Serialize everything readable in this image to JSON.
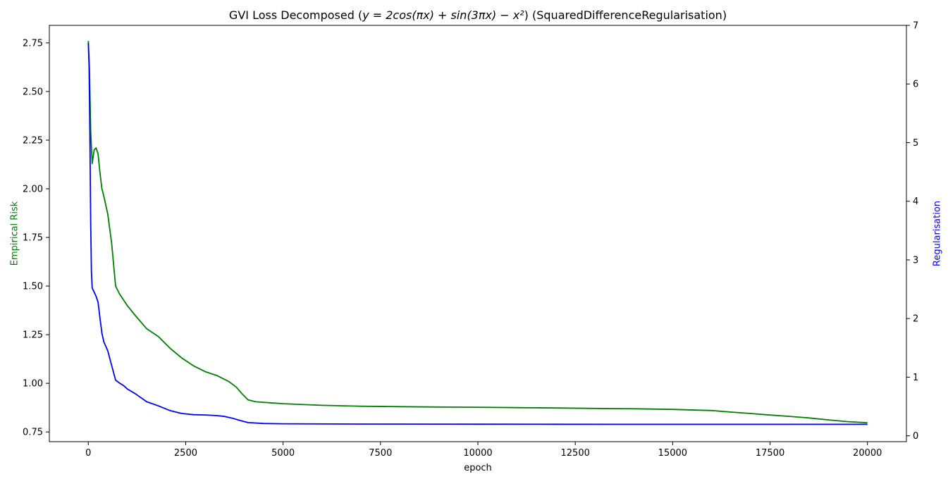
{
  "chart_data": {
    "type": "line",
    "title_parts": {
      "prefix": "GVI Loss Decomposed (",
      "formula": "y = 2cos(πx) + sin(3πx) − x²",
      "suffix": ") (SquaredDifferenceRegularisation)"
    },
    "xlabel": "epoch",
    "ylabel_left": "Empirical Risk",
    "ylabel_right": "Regularisation",
    "xlim": [
      -1000,
      21000
    ],
    "ylim_left": [
      0.7,
      2.84
    ],
    "ylim_right": [
      -0.1,
      7.0
    ],
    "x_ticks": [
      0,
      2500,
      5000,
      7500,
      10000,
      12500,
      15000,
      17500,
      20000
    ],
    "y_left_ticks": [
      "0.75",
      "1.00",
      "1.25",
      "1.50",
      "1.75",
      "2.00",
      "2.25",
      "2.50",
      "2.75"
    ],
    "y_right_ticks": [
      "0",
      "1",
      "2",
      "3",
      "4",
      "5",
      "6",
      "7"
    ],
    "grid": false,
    "colors": {
      "empirical_risk": "#008000",
      "regularisation": "#0000ff"
    },
    "series": [
      {
        "axis": "left",
        "x": [
          0,
          30,
          60,
          100,
          150,
          200,
          250,
          300,
          350,
          400,
          500,
          600,
          700,
          800,
          900,
          1000,
          1200,
          1500,
          1800,
          2100,
          2400,
          2700,
          3000,
          3300,
          3600,
          3800,
          3950,
          4100,
          4300,
          5000,
          6000,
          7000,
          8000,
          9000,
          10000,
          11000,
          12000,
          13000,
          14000,
          15000,
          16000,
          16500,
          17000,
          17500,
          18000,
          18500,
          19000,
          19500,
          20000
        ],
        "values": [
          2.76,
          2.62,
          2.3,
          2.13,
          2.2,
          2.21,
          2.18,
          2.08,
          2.0,
          1.96,
          1.87,
          1.72,
          1.5,
          1.46,
          1.43,
          1.4,
          1.35,
          1.28,
          1.24,
          1.18,
          1.13,
          1.09,
          1.06,
          1.04,
          1.01,
          0.98,
          0.945,
          0.915,
          0.905,
          0.895,
          0.887,
          0.882,
          0.88,
          0.878,
          0.877,
          0.875,
          0.873,
          0.871,
          0.869,
          0.866,
          0.86,
          0.852,
          0.845,
          0.837,
          0.83,
          0.822,
          0.812,
          0.803,
          0.797
        ]
      },
      {
        "axis": "right",
        "x": [
          0,
          20,
          40,
          60,
          80,
          100,
          150,
          200,
          250,
          300,
          350,
          400,
          500,
          600,
          700,
          800,
          900,
          1000,
          1200,
          1500,
          1800,
          2100,
          2400,
          2700,
          3000,
          3300,
          3500,
          3700,
          3900,
          4100,
          4500,
          5000,
          7000,
          10000,
          12000,
          15000,
          17500,
          20000
        ],
        "values": [
          6.7,
          6.3,
          5.2,
          3.7,
          2.8,
          2.52,
          2.45,
          2.38,
          2.28,
          2.0,
          1.75,
          1.6,
          1.45,
          1.2,
          0.95,
          0.9,
          0.86,
          0.8,
          0.72,
          0.58,
          0.51,
          0.43,
          0.38,
          0.36,
          0.355,
          0.345,
          0.33,
          0.3,
          0.26,
          0.225,
          0.21,
          0.205,
          0.2,
          0.198,
          0.197,
          0.196,
          0.195,
          0.195
        ]
      }
    ]
  }
}
